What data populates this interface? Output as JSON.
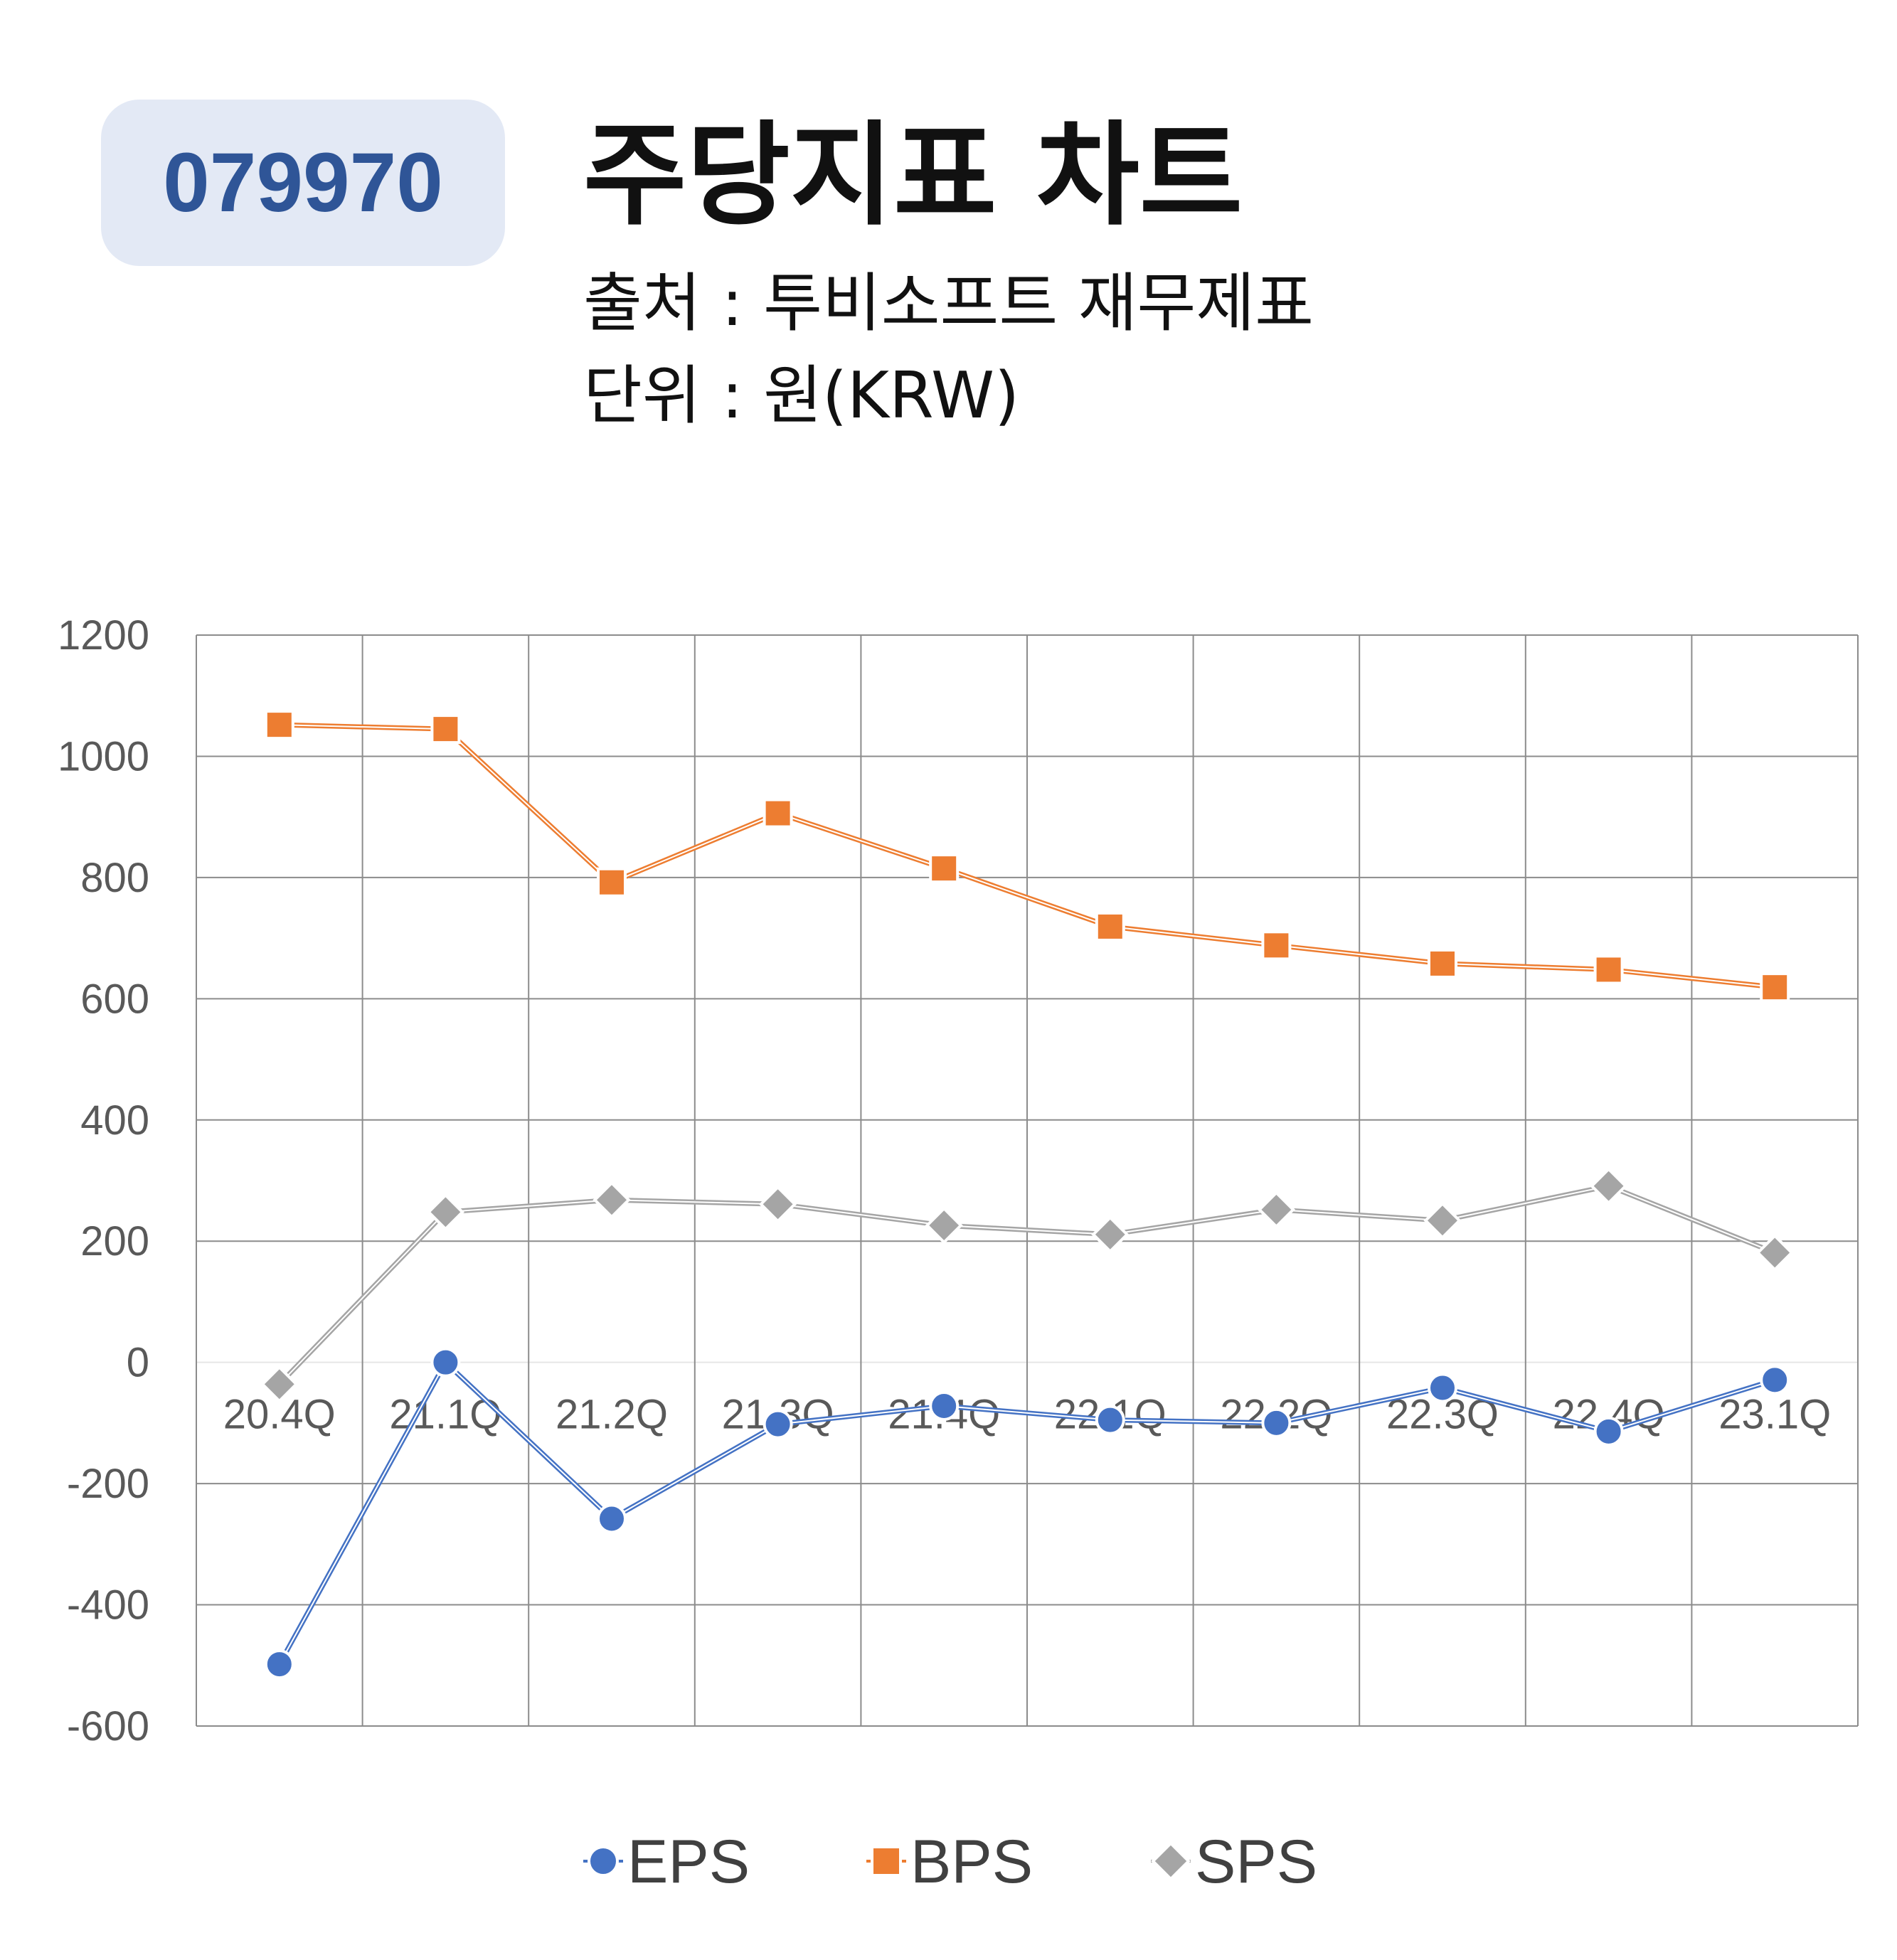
{
  "header": {
    "code": "079970",
    "title": "주당지표 차트",
    "source": "출처 : 투비소프트 재무제표",
    "unit": "단위 : 원(KRW)"
  },
  "colors": {
    "eps": "#4472c4",
    "bps": "#ed7d31",
    "sps": "#a5a5a5",
    "badge_bg": "#e3e9f5",
    "badge_text": "#2f5597",
    "grid": "#8c8c8c"
  },
  "chart_data": {
    "type": "line",
    "title": "",
    "xlabel": "",
    "ylabel": "",
    "categories": [
      "20.4Q",
      "21.1Q",
      "21.2Q",
      "21.3Q",
      "21.4Q",
      "22.1Q",
      "22.2Q",
      "22.3Q",
      "22.4Q",
      "23.1Q"
    ],
    "ylim": [
      -600,
      1200
    ],
    "yticks": [
      -600,
      -400,
      -200,
      0,
      200,
      400,
      600,
      800,
      1000,
      1200
    ],
    "grid": true,
    "legend_position": "bottom",
    "series": [
      {
        "name": "EPS",
        "marker": "circle",
        "color": "#4472c4",
        "values": [
          -498,
          0,
          -258,
          -102,
          -72,
          -95,
          -100,
          -42,
          -114,
          -29
        ]
      },
      {
        "name": "BPS",
        "marker": "square",
        "color": "#ed7d31",
        "values": [
          1052,
          1045,
          792,
          906,
          815,
          719,
          688,
          658,
          648,
          619
        ]
      },
      {
        "name": "SPS",
        "marker": "diamond",
        "color": "#a5a5a5",
        "values": [
          -36,
          248,
          268,
          261,
          226,
          211,
          252,
          234,
          291,
          181
        ]
      }
    ]
  }
}
